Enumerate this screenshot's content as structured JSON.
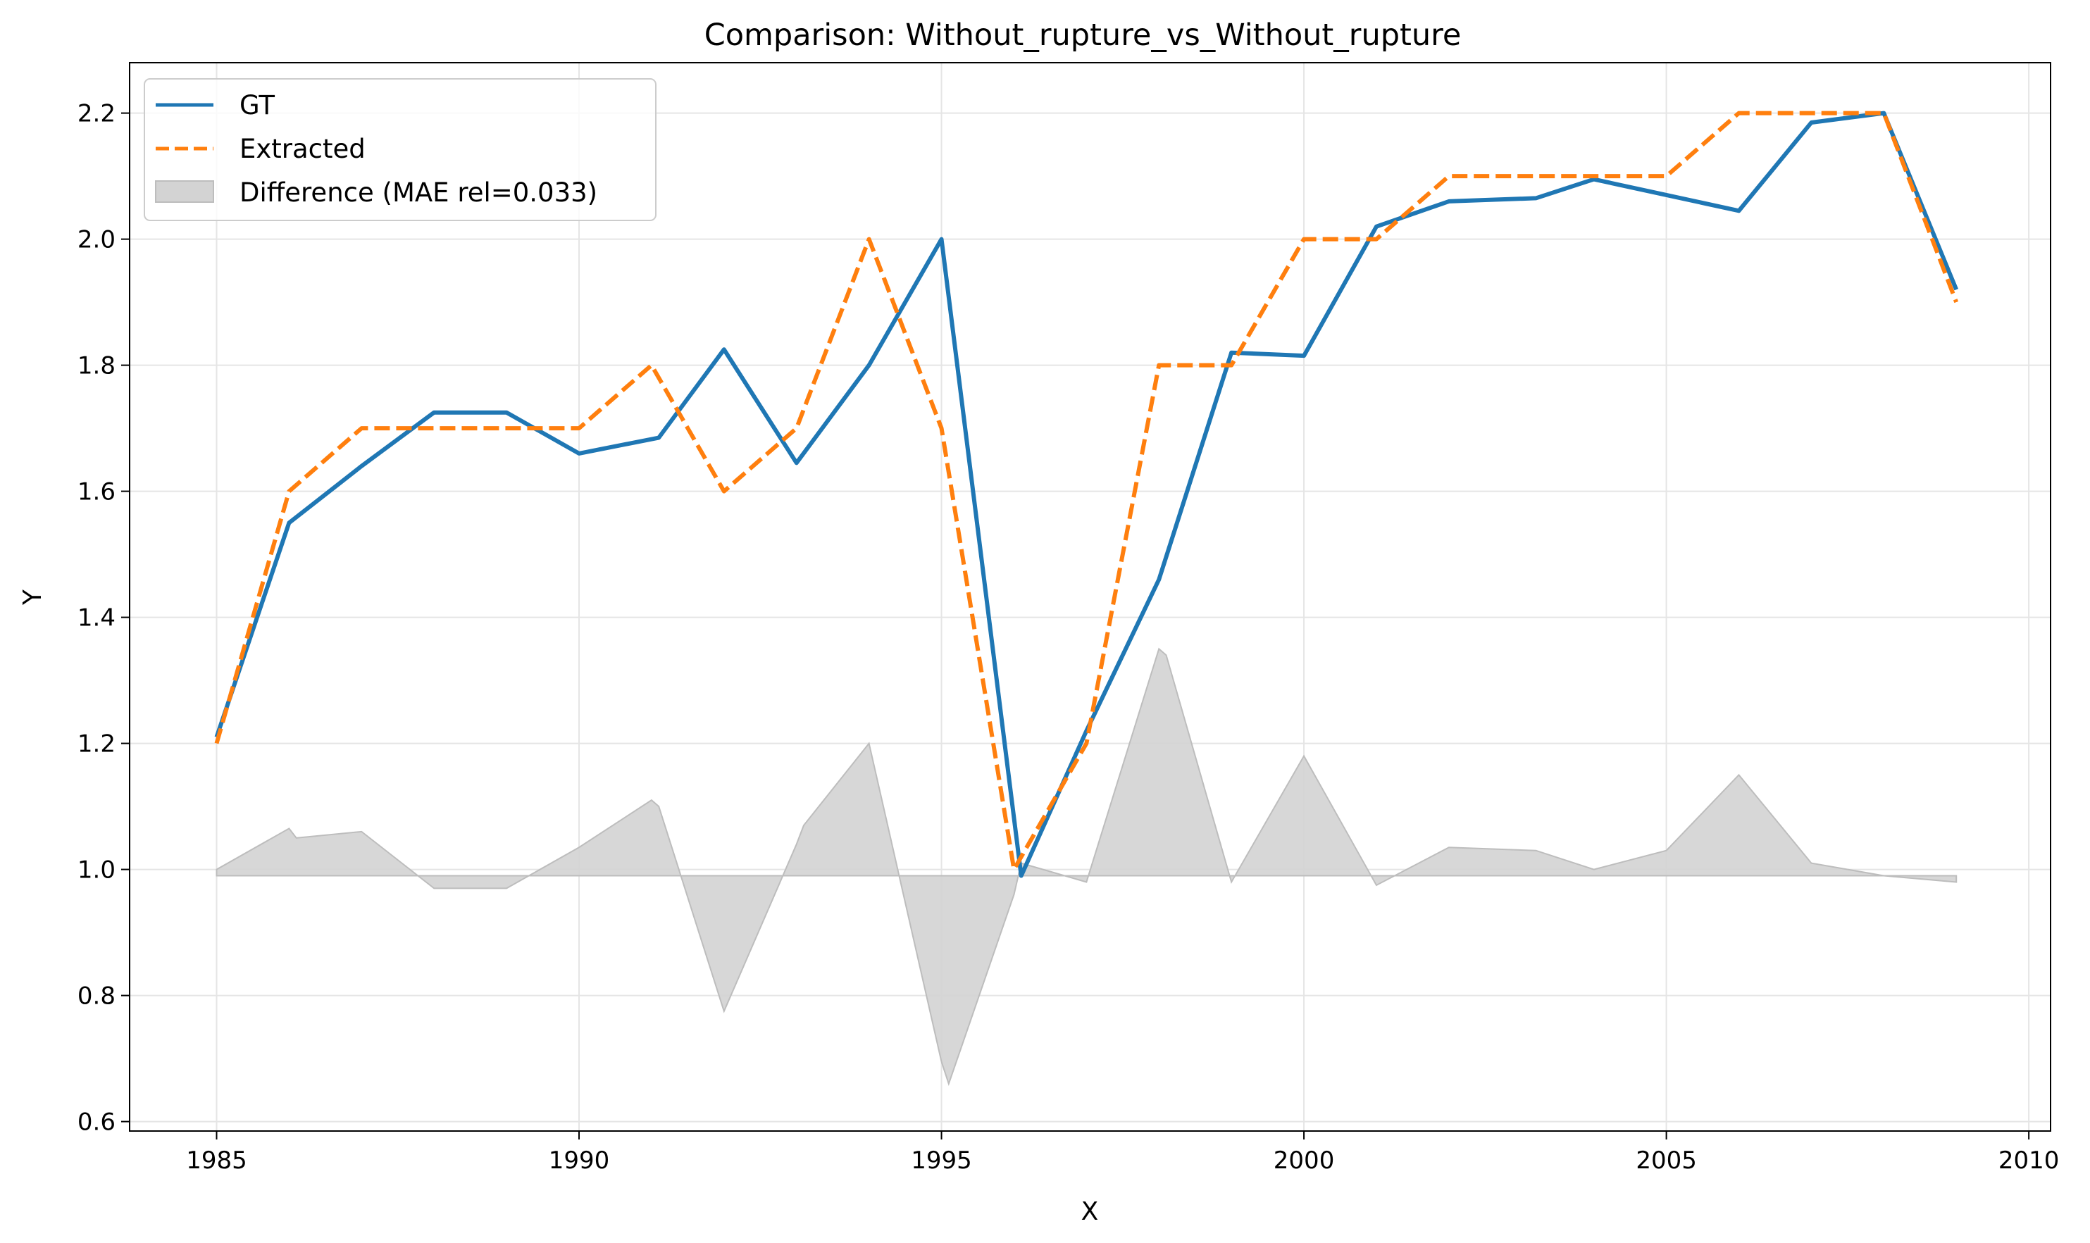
{
  "chart_data": {
    "type": "line",
    "title": "Comparison: Without_rupture_vs_Without_rupture",
    "xlabel": "X",
    "ylabel": "Y",
    "xlim": [
      1983.8,
      2010.3
    ],
    "ylim": [
      0.585,
      2.28
    ],
    "xticks": [
      1985,
      1990,
      1995,
      2000,
      2005,
      2010
    ],
    "yticks": [
      0.6,
      0.8,
      1.0,
      1.2,
      1.4,
      1.6,
      1.8,
      2.0,
      2.2
    ],
    "grid": true,
    "legend_position": "top-left",
    "series": [
      {
        "name": "GT",
        "color": "#1f77b4",
        "style": "solid",
        "x": [
          1985,
          1986,
          1987,
          1988,
          1989,
          1990,
          1991.1,
          1992,
          1993,
          1994,
          1995,
          1996.1,
          1997,
          1998,
          1999,
          2000,
          2001,
          2002,
          2003.2,
          2004,
          2005,
          2006,
          2007,
          2008,
          2009
        ],
        "y": [
          1.21,
          1.55,
          1.64,
          1.725,
          1.725,
          1.66,
          1.685,
          1.825,
          1.645,
          1.8,
          2.0,
          0.99,
          1.22,
          1.46,
          1.82,
          1.815,
          2.02,
          2.06,
          2.065,
          2.095,
          2.07,
          2.045,
          2.185,
          2.2,
          1.92
        ]
      },
      {
        "name": "Extracted",
        "color": "#ff7f0e",
        "style": "dashed",
        "x": [
          1985,
          1986,
          1987,
          1988,
          1989,
          1990,
          1991,
          1992,
          1993,
          1994,
          1995,
          1996,
          1997,
          1998,
          1999,
          2000,
          2001,
          2002,
          2003,
          2004,
          2005,
          2006,
          2007,
          2008,
          2009
        ],
        "y": [
          1.2,
          1.6,
          1.7,
          1.7,
          1.7,
          1.7,
          1.8,
          1.6,
          1.7,
          2.0,
          1.7,
          1.0,
          1.2,
          1.8,
          1.8,
          2.0,
          2.0,
          2.1,
          2.1,
          2.1,
          2.1,
          2.2,
          2.2,
          2.2,
          1.9
        ]
      },
      {
        "name": "Difference (MAE rel=0.033)",
        "type": "area",
        "color": "#d3d3d3",
        "baseline": 0.99,
        "x": [
          1985,
          1986,
          1986.1,
          1987,
          1988,
          1989,
          1990,
          1991,
          1991.1,
          1992,
          1993,
          1993.1,
          1994,
          1995,
          1995.1,
          1996,
          1996.1,
          1997,
          1998,
          1998.1,
          1999,
          2000,
          2001,
          2002,
          2003.2,
          2004,
          2005,
          2006,
          2007,
          2008,
          2009
        ],
        "y": [
          1.0,
          1.065,
          1.05,
          1.06,
          0.97,
          0.97,
          1.035,
          1.11,
          1.1,
          0.775,
          1.04,
          1.07,
          1.2,
          0.695,
          0.66,
          0.96,
          1.01,
          0.98,
          1.35,
          1.34,
          0.98,
          1.18,
          0.975,
          1.035,
          1.03,
          1.0,
          1.03,
          1.15,
          1.01,
          0.99,
          0.98
        ]
      }
    ]
  }
}
